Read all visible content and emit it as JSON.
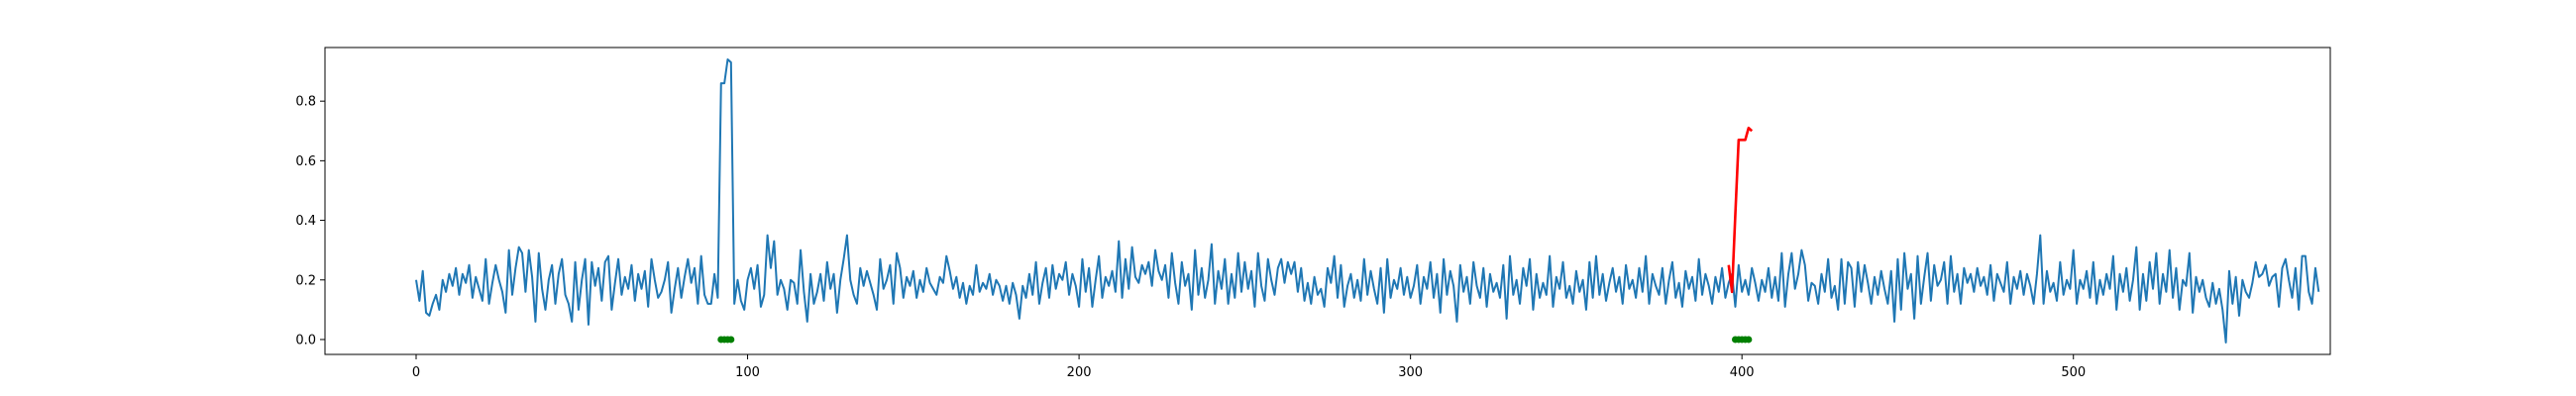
{
  "chart_data": {
    "type": "line",
    "title": "",
    "xlabel": "",
    "ylabel": "",
    "xlim": [
      -27.5,
      577.5
    ],
    "ylim": [
      -0.05,
      0.98
    ],
    "x_ticks": [
      0,
      100,
      200,
      300,
      400,
      500
    ],
    "y_ticks": [
      0.0,
      0.2,
      0.4,
      0.6,
      0.8
    ],
    "grid": false,
    "legend": "none",
    "series": [
      {
        "color": "#1f77b4",
        "style": "line",
        "x_start": 0,
        "x_step": 1,
        "values": [
          0.2,
          0.13,
          0.23,
          0.09,
          0.08,
          0.12,
          0.15,
          0.1,
          0.2,
          0.16,
          0.22,
          0.18,
          0.24,
          0.15,
          0.22,
          0.19,
          0.25,
          0.14,
          0.21,
          0.17,
          0.13,
          0.27,
          0.12,
          0.19,
          0.25,
          0.2,
          0.16,
          0.09,
          0.3,
          0.15,
          0.24,
          0.31,
          0.29,
          0.16,
          0.3,
          0.21,
          0.06,
          0.29,
          0.17,
          0.1,
          0.2,
          0.25,
          0.12,
          0.22,
          0.27,
          0.15,
          0.12,
          0.06,
          0.26,
          0.1,
          0.2,
          0.27,
          0.05,
          0.26,
          0.18,
          0.24,
          0.13,
          0.26,
          0.28,
          0.1,
          0.19,
          0.27,
          0.15,
          0.21,
          0.17,
          0.25,
          0.13,
          0.22,
          0.17,
          0.23,
          0.11,
          0.27,
          0.2,
          0.14,
          0.16,
          0.2,
          0.26,
          0.09,
          0.17,
          0.24,
          0.14,
          0.21,
          0.27,
          0.19,
          0.24,
          0.12,
          0.28,
          0.15,
          0.12,
          0.12,
          0.22,
          0.14,
          0.86,
          0.86,
          0.94,
          0.93,
          0.12,
          0.2,
          0.13,
          0.1,
          0.2,
          0.24,
          0.17,
          0.25,
          0.11,
          0.15,
          0.35,
          0.24,
          0.33,
          0.15,
          0.2,
          0.17,
          0.1,
          0.2,
          0.19,
          0.12,
          0.3,
          0.16,
          0.06,
          0.22,
          0.12,
          0.16,
          0.22,
          0.13,
          0.26,
          0.17,
          0.22,
          0.09,
          0.2,
          0.27,
          0.35,
          0.2,
          0.15,
          0.12,
          0.24,
          0.18,
          0.23,
          0.19,
          0.15,
          0.1,
          0.27,
          0.17,
          0.2,
          0.25,
          0.12,
          0.29,
          0.24,
          0.14,
          0.21,
          0.18,
          0.23,
          0.14,
          0.2,
          0.16,
          0.24,
          0.19,
          0.17,
          0.15,
          0.21,
          0.19,
          0.28,
          0.23,
          0.17,
          0.21,
          0.14,
          0.19,
          0.12,
          0.18,
          0.15,
          0.25,
          0.16,
          0.19,
          0.17,
          0.22,
          0.15,
          0.2,
          0.18,
          0.13,
          0.18,
          0.12,
          0.19,
          0.15,
          0.07,
          0.18,
          0.14,
          0.22,
          0.15,
          0.26,
          0.12,
          0.19,
          0.24,
          0.14,
          0.25,
          0.17,
          0.22,
          0.2,
          0.26,
          0.15,
          0.22,
          0.18,
          0.11,
          0.27,
          0.16,
          0.24,
          0.11,
          0.2,
          0.28,
          0.14,
          0.21,
          0.18,
          0.23,
          0.16,
          0.33,
          0.14,
          0.27,
          0.17,
          0.31,
          0.21,
          0.19,
          0.25,
          0.22,
          0.26,
          0.18,
          0.3,
          0.23,
          0.2,
          0.25,
          0.14,
          0.29,
          0.19,
          0.12,
          0.26,
          0.18,
          0.22,
          0.1,
          0.3,
          0.15,
          0.24,
          0.14,
          0.2,
          0.32,
          0.12,
          0.23,
          0.17,
          0.27,
          0.12,
          0.22,
          0.14,
          0.29,
          0.16,
          0.26,
          0.17,
          0.23,
          0.11,
          0.29,
          0.18,
          0.13,
          0.27,
          0.2,
          0.15,
          0.24,
          0.27,
          0.19,
          0.26,
          0.22,
          0.26,
          0.16,
          0.24,
          0.13,
          0.19,
          0.12,
          0.21,
          0.15,
          0.17,
          0.11,
          0.24,
          0.19,
          0.28,
          0.14,
          0.25,
          0.11,
          0.18,
          0.22,
          0.14,
          0.2,
          0.13,
          0.27,
          0.15,
          0.23,
          0.17,
          0.12,
          0.24,
          0.09,
          0.27,
          0.14,
          0.2,
          0.17,
          0.24,
          0.15,
          0.21,
          0.14,
          0.18,
          0.25,
          0.12,
          0.21,
          0.17,
          0.26,
          0.14,
          0.22,
          0.09,
          0.27,
          0.15,
          0.23,
          0.18,
          0.06,
          0.25,
          0.16,
          0.21,
          0.12,
          0.26,
          0.18,
          0.14,
          0.24,
          0.11,
          0.22,
          0.16,
          0.19,
          0.14,
          0.25,
          0.07,
          0.28,
          0.15,
          0.2,
          0.12,
          0.24,
          0.18,
          0.27,
          0.1,
          0.22,
          0.14,
          0.19,
          0.15,
          0.28,
          0.11,
          0.21,
          0.17,
          0.26,
          0.14,
          0.18,
          0.12,
          0.23,
          0.16,
          0.2,
          0.1,
          0.26,
          0.14,
          0.28,
          0.15,
          0.22,
          0.13,
          0.19,
          0.24,
          0.16,
          0.21,
          0.12,
          0.25,
          0.17,
          0.2,
          0.14,
          0.24,
          0.16,
          0.28,
          0.12,
          0.22,
          0.18,
          0.15,
          0.24,
          0.12,
          0.2,
          0.26,
          0.14,
          0.19,
          0.11,
          0.23,
          0.17,
          0.21,
          0.13,
          0.27,
          0.15,
          0.22,
          0.18,
          0.12,
          0.21,
          0.16,
          0.24,
          0.14,
          0.19,
          0.22,
          0.11,
          0.25,
          0.16,
          0.2,
          0.15,
          0.24,
          0.19,
          0.13,
          0.2,
          0.16,
          0.24,
          0.14,
          0.21,
          0.13,
          0.29,
          0.11,
          0.22,
          0.29,
          0.17,
          0.22,
          0.3,
          0.25,
          0.13,
          0.19,
          0.18,
          0.12,
          0.22,
          0.16,
          0.27,
          0.14,
          0.18,
          0.1,
          0.27,
          0.12,
          0.26,
          0.24,
          0.11,
          0.26,
          0.16,
          0.25,
          0.19,
          0.12,
          0.21,
          0.15,
          0.23,
          0.17,
          0.12,
          0.23,
          0.06,
          0.27,
          0.1,
          0.29,
          0.17,
          0.22,
          0.07,
          0.28,
          0.12,
          0.21,
          0.29,
          0.13,
          0.25,
          0.18,
          0.2,
          0.26,
          0.12,
          0.28,
          0.16,
          0.22,
          0.12,
          0.24,
          0.19,
          0.22,
          0.16,
          0.24,
          0.18,
          0.21,
          0.15,
          0.25,
          0.13,
          0.22,
          0.19,
          0.16,
          0.26,
          0.12,
          0.21,
          0.17,
          0.23,
          0.15,
          0.22,
          0.18,
          0.12,
          0.22,
          0.35,
          0.12,
          0.23,
          0.16,
          0.19,
          0.13,
          0.26,
          0.15,
          0.2,
          0.17,
          0.3,
          0.12,
          0.2,
          0.17,
          0.23,
          0.14,
          0.26,
          0.12,
          0.2,
          0.15,
          0.22,
          0.17,
          0.28,
          0.1,
          0.22,
          0.16,
          0.24,
          0.13,
          0.2,
          0.31,
          0.1,
          0.22,
          0.13,
          0.26,
          0.17,
          0.29,
          0.12,
          0.22,
          0.16,
          0.3,
          0.14,
          0.24,
          0.1,
          0.2,
          0.18,
          0.29,
          0.09,
          0.21,
          0.16,
          0.2,
          0.14,
          0.11,
          0.19,
          0.12,
          0.17,
          0.1,
          -0.01,
          0.23,
          0.12,
          0.21,
          0.08,
          0.2,
          0.16,
          0.14,
          0.19,
          0.26,
          0.21,
          0.22,
          0.25,
          0.18,
          0.21,
          0.22,
          0.11,
          0.24,
          0.27,
          0.2,
          0.14,
          0.24,
          0.1,
          0.28,
          0.28,
          0.16,
          0.12,
          0.24,
          0.16
        ]
      },
      {
        "color": "#ff0000",
        "style": "line",
        "x": [
          396,
          397,
          398,
          399,
          400,
          401,
          402,
          403
        ],
        "values": [
          0.25,
          0.16,
          0.42,
          0.67,
          0.67,
          0.67,
          0.71,
          0.7
        ]
      },
      {
        "color": "#008000",
        "style": "markers",
        "x": [
          92,
          93,
          94,
          95,
          398,
          399,
          400,
          401,
          402
        ],
        "values": [
          0,
          0,
          0,
          0,
          0,
          0,
          0,
          0,
          0
        ]
      }
    ]
  }
}
